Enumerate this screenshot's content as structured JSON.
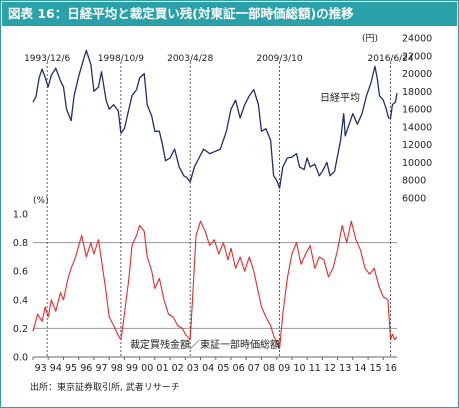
{
  "title": "図表 16：日経平均と裁定買い残(対東証一部時価総額)の推移",
  "source": "出所：東京証券取引所, 武者リサーチ",
  "chart_data": [
    {
      "type": "line",
      "name": "nikkei",
      "series": [
        {
          "name": "日経平均",
          "color": "#1f2f6a"
        }
      ],
      "y_unit": "(円)",
      "ylim": [
        6000,
        24000
      ],
      "y_ticks": [
        6000,
        8000,
        10000,
        12000,
        14000,
        16000,
        18000,
        20000,
        22000,
        24000
      ],
      "x_range": [
        1993.0,
        2016.9
      ],
      "points": [
        [
          1993.0,
          16800
        ],
        [
          1993.2,
          17400
        ],
        [
          1993.4,
          19500
        ],
        [
          1993.6,
          20500
        ],
        [
          1993.75,
          19800
        ],
        [
          1994.0,
          18500
        ],
        [
          1994.2,
          19800
        ],
        [
          1994.5,
          20600
        ],
        [
          1994.8,
          19200
        ],
        [
          1995.0,
          18500
        ],
        [
          1995.2,
          16000
        ],
        [
          1995.5,
          14700
        ],
        [
          1995.7,
          17500
        ],
        [
          1996.0,
          19700
        ],
        [
          1996.3,
          21500
        ],
        [
          1996.5,
          22600
        ],
        [
          1996.8,
          21000
        ],
        [
          1997.0,
          18000
        ],
        [
          1997.3,
          18500
        ],
        [
          1997.5,
          20200
        ],
        [
          1997.8,
          17000
        ],
        [
          1998.0,
          16000
        ],
        [
          1998.3,
          16500
        ],
        [
          1998.6,
          15800
        ],
        [
          1998.77,
          13300
        ],
        [
          1999.0,
          13800
        ],
        [
          1999.3,
          16000
        ],
        [
          1999.5,
          17500
        ],
        [
          1999.8,
          18200
        ],
        [
          2000.0,
          19500
        ],
        [
          2000.3,
          20000
        ],
        [
          2000.5,
          16500
        ],
        [
          2000.8,
          15200
        ],
        [
          2001.0,
          13500
        ],
        [
          2001.3,
          13500
        ],
        [
          2001.5,
          12000
        ],
        [
          2001.7,
          10200
        ],
        [
          2002.0,
          10500
        ],
        [
          2002.3,
          11500
        ],
        [
          2002.6,
          9500
        ],
        [
          2002.9,
          8500
        ],
        [
          2003.1,
          8300
        ],
        [
          2003.32,
          7800
        ],
        [
          2003.6,
          9500
        ],
        [
          2003.9,
          10500
        ],
        [
          2004.2,
          11500
        ],
        [
          2004.6,
          11000
        ],
        [
          2004.9,
          11200
        ],
        [
          2005.3,
          11500
        ],
        [
          2005.7,
          13500
        ],
        [
          2006.0,
          16000
        ],
        [
          2006.3,
          17000
        ],
        [
          2006.6,
          15000
        ],
        [
          2006.9,
          16500
        ],
        [
          2007.2,
          17500
        ],
        [
          2007.5,
          18200
        ],
        [
          2007.8,
          16500
        ],
        [
          2008.0,
          13500
        ],
        [
          2008.3,
          13800
        ],
        [
          2008.6,
          12500
        ],
        [
          2008.8,
          8500
        ],
        [
          2009.0,
          8000
        ],
        [
          2009.19,
          7100
        ],
        [
          2009.4,
          9500
        ],
        [
          2009.7,
          10500
        ],
        [
          2010.0,
          10600
        ],
        [
          2010.3,
          11000
        ],
        [
          2010.5,
          9500
        ],
        [
          2010.8,
          9200
        ],
        [
          2011.0,
          10500
        ],
        [
          2011.2,
          9500
        ],
        [
          2011.5,
          9800
        ],
        [
          2011.8,
          8500
        ],
        [
          2012.0,
          9000
        ],
        [
          2012.3,
          10000
        ],
        [
          2012.5,
          8500
        ],
        [
          2012.8,
          9000
        ],
        [
          2012.95,
          10300
        ],
        [
          2013.2,
          12500
        ],
        [
          2013.4,
          15500
        ],
        [
          2013.5,
          13000
        ],
        [
          2013.8,
          14500
        ],
        [
          2014.0,
          15500
        ],
        [
          2014.3,
          14300
        ],
        [
          2014.6,
          15500
        ],
        [
          2014.9,
          17500
        ],
        [
          2015.2,
          19000
        ],
        [
          2015.45,
          20800
        ],
        [
          2015.6,
          19500
        ],
        [
          2015.75,
          17500
        ],
        [
          2016.0,
          17000
        ],
        [
          2016.2,
          16000
        ],
        [
          2016.35,
          15000
        ],
        [
          2016.48,
          15000
        ],
        [
          2016.6,
          16500
        ],
        [
          2016.8,
          16800
        ],
        [
          2016.9,
          17800
        ]
      ]
    },
    {
      "type": "line",
      "name": "arbitrage",
      "series": [
        {
          "name": "裁定買残金額／東証一部時価総額",
          "color": "#e8282a"
        }
      ],
      "y_unit": "(%)",
      "ylim": [
        0.0,
        1.0
      ],
      "y_ticks": [
        0.0,
        0.2,
        0.4,
        0.6,
        0.8,
        1.0
      ],
      "reference_lines": [
        0.2,
        0.8
      ],
      "x_range": [
        1993.0,
        2016.9
      ],
      "x_ticks": [
        "93",
        "94",
        "95",
        "96",
        "97",
        "98",
        "99",
        "00",
        "01",
        "02",
        "03",
        "04",
        "05",
        "06",
        "07",
        "08",
        "09",
        "10",
        "11",
        "12",
        "13",
        "14",
        "15",
        "16"
      ],
      "points": [
        [
          1993.0,
          0.18
        ],
        [
          1993.3,
          0.3
        ],
        [
          1993.6,
          0.25
        ],
        [
          1993.8,
          0.35
        ],
        [
          1994.0,
          0.28
        ],
        [
          1994.2,
          0.4
        ],
        [
          1994.5,
          0.32
        ],
        [
          1994.8,
          0.45
        ],
        [
          1995.0,
          0.4
        ],
        [
          1995.3,
          0.55
        ],
        [
          1995.5,
          0.62
        ],
        [
          1995.8,
          0.7
        ],
        [
          1996.0,
          0.78
        ],
        [
          1996.2,
          0.85
        ],
        [
          1996.5,
          0.7
        ],
        [
          1996.8,
          0.8
        ],
        [
          1997.0,
          0.72
        ],
        [
          1997.3,
          0.82
        ],
        [
          1997.6,
          0.6
        ],
        [
          1997.8,
          0.45
        ],
        [
          1998.0,
          0.28
        ],
        [
          1998.3,
          0.22
        ],
        [
          1998.6,
          0.15
        ],
        [
          1998.77,
          0.12
        ],
        [
          1999.0,
          0.3
        ],
        [
          1999.3,
          0.55
        ],
        [
          1999.5,
          0.78
        ],
        [
          1999.8,
          0.85
        ],
        [
          2000.0,
          0.92
        ],
        [
          2000.3,
          0.88
        ],
        [
          2000.5,
          0.7
        ],
        [
          2000.8,
          0.6
        ],
        [
          2001.0,
          0.48
        ],
        [
          2001.3,
          0.55
        ],
        [
          2001.6,
          0.4
        ],
        [
          2001.9,
          0.3
        ],
        [
          2002.2,
          0.28
        ],
        [
          2002.5,
          0.22
        ],
        [
          2002.8,
          0.2
        ],
        [
          2003.0,
          0.16
        ],
        [
          2003.32,
          0.12
        ],
        [
          2003.5,
          0.45
        ],
        [
          2003.7,
          0.85
        ],
        [
          2004.0,
          0.95
        ],
        [
          2004.3,
          0.88
        ],
        [
          2004.6,
          0.78
        ],
        [
          2004.9,
          0.82
        ],
        [
          2005.2,
          0.72
        ],
        [
          2005.5,
          0.8
        ],
        [
          2005.8,
          0.68
        ],
        [
          2006.0,
          0.76
        ],
        [
          2006.3,
          0.62
        ],
        [
          2006.6,
          0.7
        ],
        [
          2006.9,
          0.6
        ],
        [
          2007.2,
          0.7
        ],
        [
          2007.5,
          0.6
        ],
        [
          2007.8,
          0.45
        ],
        [
          2008.0,
          0.35
        ],
        [
          2008.3,
          0.28
        ],
        [
          2008.6,
          0.22
        ],
        [
          2008.8,
          0.15
        ],
        [
          2009.0,
          0.1
        ],
        [
          2009.19,
          0.06
        ],
        [
          2009.4,
          0.3
        ],
        [
          2009.7,
          0.55
        ],
        [
          2010.0,
          0.72
        ],
        [
          2010.3,
          0.8
        ],
        [
          2010.6,
          0.65
        ],
        [
          2010.9,
          0.72
        ],
        [
          2011.2,
          0.78
        ],
        [
          2011.5,
          0.62
        ],
        [
          2011.8,
          0.7
        ],
        [
          2012.1,
          0.68
        ],
        [
          2012.4,
          0.56
        ],
        [
          2012.7,
          0.62
        ],
        [
          2013.0,
          0.75
        ],
        [
          2013.3,
          0.92
        ],
        [
          2013.6,
          0.8
        ],
        [
          2013.9,
          0.95
        ],
        [
          2014.2,
          0.82
        ],
        [
          2014.5,
          0.75
        ],
        [
          2014.8,
          0.62
        ],
        [
          2015.1,
          0.58
        ],
        [
          2015.4,
          0.62
        ],
        [
          2015.7,
          0.5
        ],
        [
          2016.0,
          0.42
        ],
        [
          2016.3,
          0.4
        ],
        [
          2016.48,
          0.12
        ],
        [
          2016.6,
          0.16
        ],
        [
          2016.75,
          0.12
        ],
        [
          2016.9,
          0.14
        ]
      ]
    }
  ],
  "event_markers": [
    {
      "label": "1993/12/6",
      "x": 1993.93
    },
    {
      "label": "1998/10/9",
      "x": 1998.77
    },
    {
      "label": "2003/4/28",
      "x": 2003.32
    },
    {
      "label": "2009/3/10",
      "x": 2009.19
    },
    {
      "label": "2016/6/24",
      "x": 2016.48
    }
  ],
  "annotations": {
    "nikkei_label": "日経平均",
    "arbitrage_label": "裁定買残金額／東証一部時価総額"
  }
}
